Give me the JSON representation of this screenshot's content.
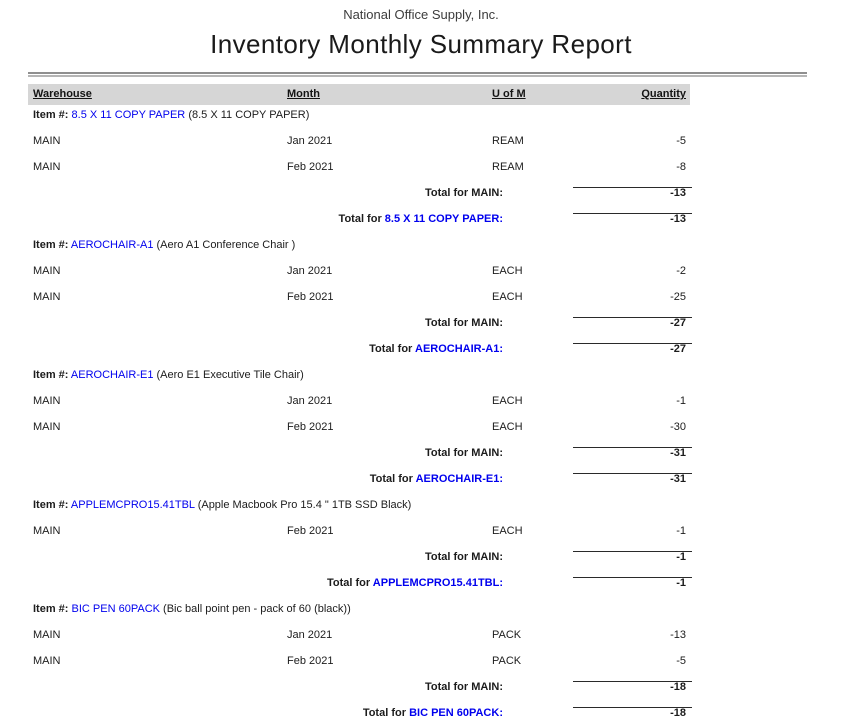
{
  "report": {
    "company": "National Office Supply, Inc.",
    "title": "Inventory Monthly Summary Report",
    "labels": {
      "item": "Item #:",
      "total_for": "Total for"
    },
    "columns": {
      "warehouse": "Warehouse",
      "month": "Month",
      "uom": "U of M",
      "quantity": "Quantity"
    },
    "colors": {
      "link_blue": "#0000ee",
      "header_bar_bg": "#d6d6d6",
      "text": "#1c1c1c"
    },
    "groups": [
      {
        "code": "8.5 X 11 COPY PAPER",
        "description": "(8.5 X 11 COPY PAPER)",
        "rows": [
          {
            "warehouse": "MAIN",
            "month": "Jan 2021",
            "uom": "REAM",
            "qty": "-5"
          },
          {
            "warehouse": "MAIN",
            "month": "Feb 2021",
            "uom": "REAM",
            "qty": "-8"
          }
        ],
        "total_warehouse_label": "Total for MAIN:",
        "total_warehouse_qty": "-13",
        "total_item_code": "8.5 X 11 COPY PAPER:",
        "total_item_qty": "-13"
      },
      {
        "code": "AEROCHAIR-A1",
        "description": "(Aero A1 Conference Chair )",
        "rows": [
          {
            "warehouse": "MAIN",
            "month": "Jan 2021",
            "uom": "EACH",
            "qty": "-2"
          },
          {
            "warehouse": "MAIN",
            "month": "Feb 2021",
            "uom": "EACH",
            "qty": "-25"
          }
        ],
        "total_warehouse_label": "Total for MAIN:",
        "total_warehouse_qty": "-27",
        "total_item_code": "AEROCHAIR-A1:",
        "total_item_qty": "-27"
      },
      {
        "code": "AEROCHAIR-E1",
        "description": "(Aero E1 Executive Tile Chair)",
        "rows": [
          {
            "warehouse": "MAIN",
            "month": "Jan 2021",
            "uom": "EACH",
            "qty": "-1"
          },
          {
            "warehouse": "MAIN",
            "month": "Feb 2021",
            "uom": "EACH",
            "qty": "-30"
          }
        ],
        "total_warehouse_label": "Total for MAIN:",
        "total_warehouse_qty": "-31",
        "total_item_code": "AEROCHAIR-E1:",
        "total_item_qty": "-31"
      },
      {
        "code": "APPLEMCPRO15.41TBL",
        "description": "(Apple Macbook Pro 15.4 \" 1TB SSD Black)",
        "rows": [
          {
            "warehouse": "MAIN",
            "month": "Feb 2021",
            "uom": "EACH",
            "qty": "-1"
          }
        ],
        "total_warehouse_label": "Total for MAIN:",
        "total_warehouse_qty": "-1",
        "total_item_code": "APPLEMCPRO15.41TBL:",
        "total_item_qty": "-1"
      },
      {
        "code": "BIC PEN 60PACK",
        "description": "(Bic ball point pen - pack of 60 (black))",
        "rows": [
          {
            "warehouse": "MAIN",
            "month": "Jan 2021",
            "uom": "PACK",
            "qty": "-13"
          },
          {
            "warehouse": "MAIN",
            "month": "Feb 2021",
            "uom": "PACK",
            "qty": "-5"
          }
        ],
        "total_warehouse_label": "Total for MAIN:",
        "total_warehouse_qty": "-18",
        "total_item_code": "BIC PEN 60PACK:",
        "total_item_qty": "-18"
      }
    ]
  }
}
